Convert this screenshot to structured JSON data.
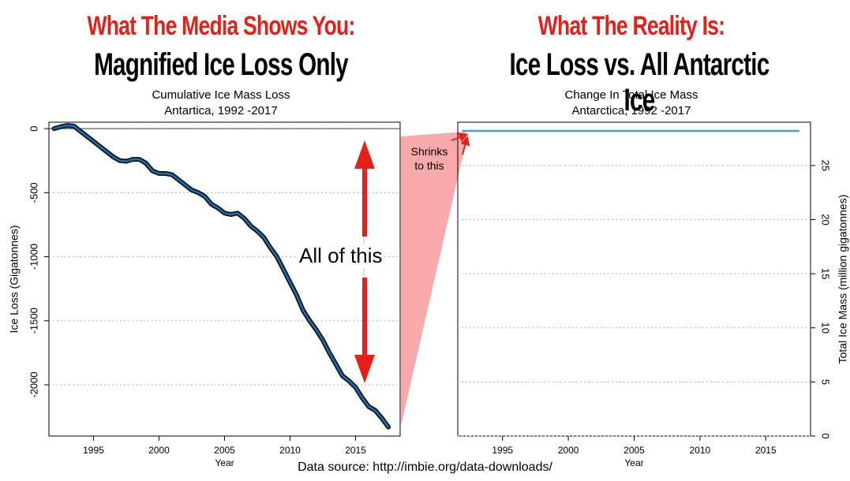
{
  "left": {
    "headline_red": "What The Media Shows You:",
    "headline_black": "Magnified Ice Loss Only",
    "subtitle_line1": "Cumulative Ice Mass Loss",
    "subtitle_line2": "Antartica, 1992 -2017"
  },
  "right": {
    "headline_red": "What The Reality Is:",
    "headline_black": "Ice Loss vs. All Antarctic Ice",
    "subtitle_line1": "Change In Total Ice Mass",
    "subtitle_line2": "Antarctica, 1992 -2017"
  },
  "annotations": {
    "all_of_this": "All of this",
    "shrinks_line1": "Shrinks",
    "shrinks_line2": "to this",
    "arrow_color": "#e4201b",
    "funnel_color": "#f6a0a3"
  },
  "footer": "Data source: http://imbie.org/data-downloads/",
  "chart_data": [
    {
      "type": "line",
      "title": "Cumulative Ice Mass Loss",
      "xlabel": "Year",
      "ylabel": "Ice Loss (Gigatonnes)",
      "xlim": [
        1991.6,
        2018.4
      ],
      "ylim": [
        -2400,
        50
      ],
      "x_ticks": [
        1995,
        2000,
        2005,
        2010,
        2015
      ],
      "y_ticks": [
        0,
        -500,
        -1000,
        -1500,
        -2000
      ],
      "grid": "horizontal dotted",
      "reference_line": 0,
      "line_color": "#1a6fb5",
      "series": [
        {
          "x": [
            1992.0,
            1992.5,
            1993.0,
            1993.5,
            1994.0,
            1994.5,
            1995.0,
            1995.5,
            1996.0,
            1996.5,
            1997.0,
            1997.5,
            1998.0,
            1998.5,
            1999.0,
            1999.5,
            2000.0,
            2000.5,
            2001.0,
            2001.5,
            2002.0,
            2002.5,
            2003.0,
            2003.5,
            2004.0,
            2004.5,
            2005.0,
            2005.5,
            2006.0,
            2006.5,
            2007.0,
            2007.5,
            2008.0,
            2008.5,
            2009.0,
            2009.5,
            2010.0,
            2010.5,
            2011.0,
            2011.5,
            2012.0,
            2012.5,
            2013.0,
            2013.5,
            2014.0,
            2014.5,
            2015.0,
            2015.5,
            2016.0,
            2016.5,
            2017.0,
            2017.5
          ],
          "values": [
            0,
            15,
            25,
            20,
            -20,
            -60,
            -100,
            -140,
            -180,
            -220,
            -250,
            -255,
            -240,
            -240,
            -270,
            -330,
            -350,
            -350,
            -360,
            -400,
            -440,
            -480,
            -500,
            -530,
            -590,
            -620,
            -660,
            -670,
            -660,
            -700,
            -760,
            -800,
            -850,
            -930,
            -1000,
            -1100,
            -1200,
            -1300,
            -1420,
            -1500,
            -1570,
            -1650,
            -1750,
            -1840,
            -1930,
            -1970,
            -2020,
            -2100,
            -2170,
            -2200,
            -2260,
            -2330
          ]
        }
      ]
    },
    {
      "type": "line",
      "title": "Change In Total Ice Mass",
      "xlabel": "Year",
      "ylabel": "Total Ice Mass (million gigatonnes)",
      "xlim": [
        1991.6,
        2018.4
      ],
      "ylim": [
        0,
        29
      ],
      "x_ticks": [
        1995,
        2000,
        2005,
        2010,
        2015
      ],
      "y_ticks": [
        0,
        5,
        10,
        15,
        20,
        25
      ],
      "y_axis_side": "right",
      "grid": "horizontal dotted",
      "line_color": "#4aa0dc",
      "series": [
        {
          "x": [
            1992,
            2017.5
          ],
          "values": [
            28.2,
            28.2
          ]
        }
      ]
    }
  ]
}
